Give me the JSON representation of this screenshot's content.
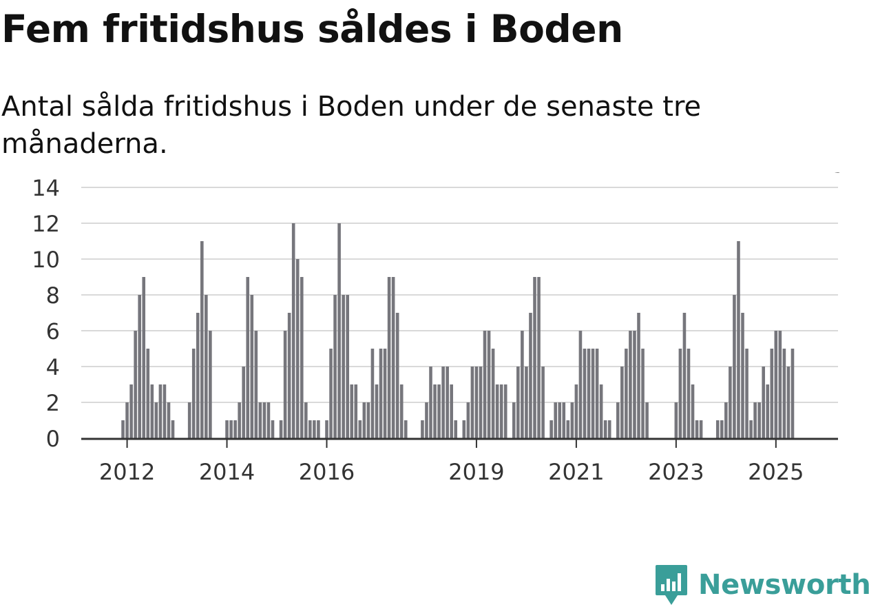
{
  "title": "Fem fritidshus såldes i Boden",
  "subtitle": "Antal sålda fritidshus i Boden under de senaste tre månaderna.",
  "brand": {
    "name": "Newsworthy",
    "color": "#3a9e99"
  },
  "colors": {
    "bar": "#76767c",
    "highlight": "#1a9e9a",
    "grid": "#d9d9d9",
    "axis": "#333333",
    "text": "#333333"
  },
  "chart_data": {
    "type": "bar",
    "title": "Fem fritidshus såldes i Boden",
    "xlabel": "",
    "ylabel": "",
    "ylim": [
      0,
      14
    ],
    "yticks": [
      "0",
      "2",
      "4",
      "6",
      "8",
      "10",
      "12",
      "14"
    ],
    "xticks": [
      {
        "label": "2012",
        "index": 2
      },
      {
        "label": "2014",
        "index": 26
      },
      {
        "label": "2016",
        "index": 50
      },
      {
        "label": "2019",
        "index": 86
      },
      {
        "label": "2021",
        "index": 110
      },
      {
        "label": "2023",
        "index": 134
      },
      {
        "label": "2025",
        "index": 158
      }
    ],
    "values": [
      null,
      1,
      2,
      3,
      6,
      8,
      9,
      5,
      3,
      2,
      3,
      3,
      2,
      1,
      null,
      null,
      null,
      2,
      5,
      7,
      11,
      8,
      6,
      null,
      null,
      null,
      1,
      1,
      1,
      2,
      4,
      9,
      8,
      6,
      2,
      2,
      2,
      1,
      null,
      1,
      6,
      7,
      12,
      10,
      9,
      2,
      1,
      1,
      1,
      null,
      1,
      5,
      8,
      12,
      8,
      8,
      3,
      3,
      1,
      2,
      2,
      5,
      3,
      5,
      5,
      9,
      9,
      7,
      3,
      1,
      null,
      null,
      null,
      1,
      2,
      4,
      3,
      3,
      4,
      4,
      3,
      1,
      null,
      1,
      2,
      4,
      4,
      4,
      6,
      6,
      5,
      3,
      3,
      3,
      null,
      2,
      4,
      6,
      4,
      7,
      9,
      9,
      4,
      null,
      1,
      2,
      2,
      2,
      1,
      2,
      3,
      6,
      5,
      5,
      5,
      5,
      3,
      1,
      1,
      null,
      2,
      4,
      5,
      6,
      6,
      7,
      5,
      2,
      null,
      null,
      null,
      null,
      null,
      null,
      2,
      5,
      7,
      5,
      3,
      1,
      1,
      null,
      null,
      null,
      1,
      1,
      2,
      4,
      8,
      11,
      7,
      5,
      1,
      2,
      2,
      4,
      3,
      5,
      6,
      6,
      5,
      4,
      5
    ],
    "highlight_index": 173,
    "annotations": [
      {
        "index": 173,
        "text": "5"
      }
    ]
  }
}
